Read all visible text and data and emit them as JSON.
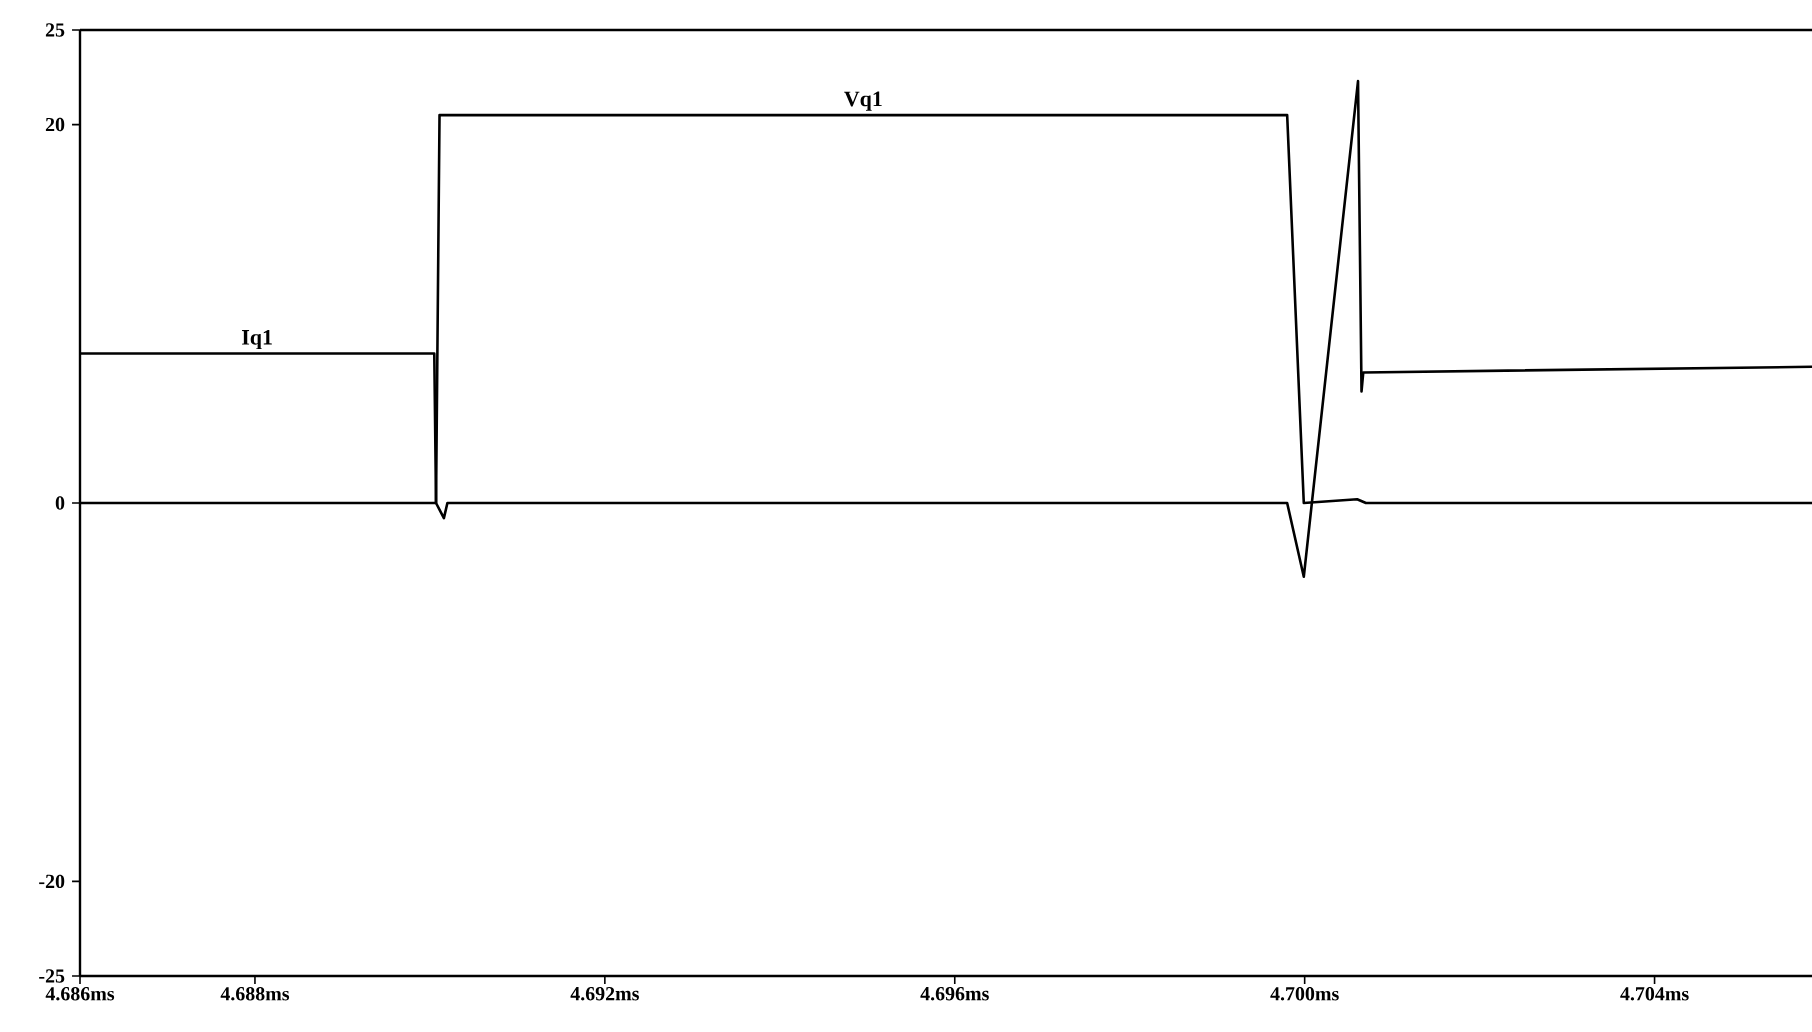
{
  "chart_data": {
    "type": "line",
    "xlim": [
      4.686,
      4.7058
    ],
    "ylim": [
      -25,
      25
    ],
    "xticks": [
      {
        "value": 4.686,
        "label": "4.686ms"
      },
      {
        "value": 4.688,
        "label": "4.688ms"
      },
      {
        "value": 4.692,
        "label": "4.692ms"
      },
      {
        "value": 4.696,
        "label": "4.696ms"
      },
      {
        "value": 4.7,
        "label": "4.700ms"
      },
      {
        "value": 4.704,
        "label": "4.704ms"
      }
    ],
    "yticks": [
      -25,
      -20,
      0,
      20,
      25
    ],
    "series": [
      {
        "name": "Iq1",
        "color": "#000000",
        "x": [
          4.686,
          4.69005,
          4.69007,
          4.69016,
          4.6902,
          4.6998,
          4.69999,
          4.70061,
          4.70065,
          4.70067,
          4.7058
        ],
        "values": [
          7.9,
          7.9,
          0,
          -0.8,
          0,
          0,
          -3.9,
          22.3,
          5.9,
          6.9,
          7.2
        ]
      },
      {
        "name": "Vq1",
        "color": "#000000",
        "x": [
          4.686,
          4.69007,
          4.69011,
          4.6998,
          4.69999,
          4.7006,
          4.7007,
          4.7058
        ],
        "values": [
          0,
          0,
          20.5,
          20.5,
          0,
          0.2,
          0,
          0
        ]
      }
    ]
  }
}
